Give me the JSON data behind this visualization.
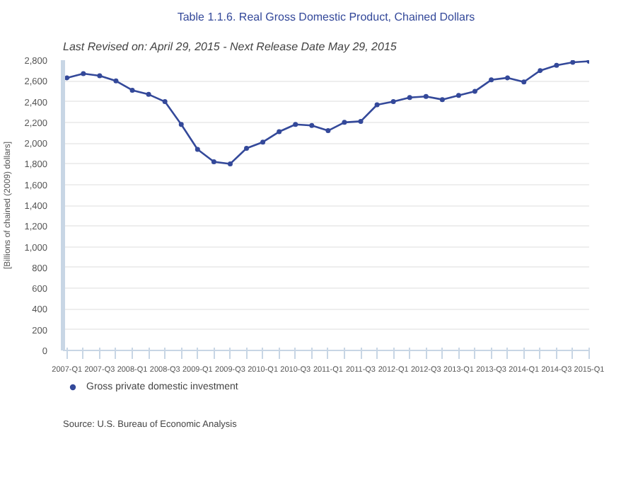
{
  "chart_data": {
    "type": "line",
    "title": "Table 1.1.6. Real Gross Domestic Product, Chained Dollars",
    "subtitle": "Last Revised on: April 29, 2015 - Next Release Date May 29, 2015",
    "ylabel": "[Billions of chained (2009) dollars]",
    "categories": [
      "2007-Q1",
      null,
      "2007-Q3",
      null,
      "2008-Q1",
      null,
      "2008-Q3",
      null,
      "2009-Q1",
      null,
      "2009-Q3",
      null,
      "2010-Q1",
      null,
      "2010-Q3",
      null,
      "2011-Q1",
      null,
      "2011-Q3",
      null,
      "2012-Q1",
      null,
      "2012-Q3",
      null,
      "2013-Q1",
      null,
      "2013-Q3",
      null,
      "2014-Q1",
      null,
      "2014-Q3",
      null,
      "2015-Q1"
    ],
    "series": [
      {
        "name": "Gross private domestic investment",
        "color": "#34499a",
        "values": [
          2630,
          2670,
          2650,
          2600,
          2510,
          2470,
          2400,
          2180,
          1940,
          1820,
          1800,
          1950,
          2010,
          2110,
          2180,
          2170,
          2120,
          2200,
          2210,
          2370,
          2400,
          2440,
          2450,
          2420,
          2460,
          2500,
          2610,
          2630,
          2590,
          2700,
          2750,
          2780,
          2790
        ]
      }
    ],
    "ylim": [
      0,
      2800
    ],
    "yticks": [
      0,
      200,
      400,
      600,
      800,
      {
        "value": 1000,
        "label": "1,000"
      },
      {
        "value": 1200,
        "label": "1,200"
      },
      {
        "value": 1400,
        "label": "1,400"
      },
      {
        "value": 1600,
        "label": "1,600"
      },
      {
        "value": 1800,
        "label": "1,800"
      },
      {
        "value": 2000,
        "label": "2,000"
      },
      {
        "value": 2200,
        "label": "2,200"
      },
      {
        "value": 2400,
        "label": "2,400"
      },
      {
        "value": 2600,
        "label": "2,600"
      },
      {
        "value": 2800,
        "label": "2,800"
      }
    ],
    "grid": "y",
    "legend": "bottom",
    "marker": "circle",
    "line_style": "solid",
    "annotations": [
      "Source: U.S. Bureau of Economic Analysis"
    ]
  }
}
